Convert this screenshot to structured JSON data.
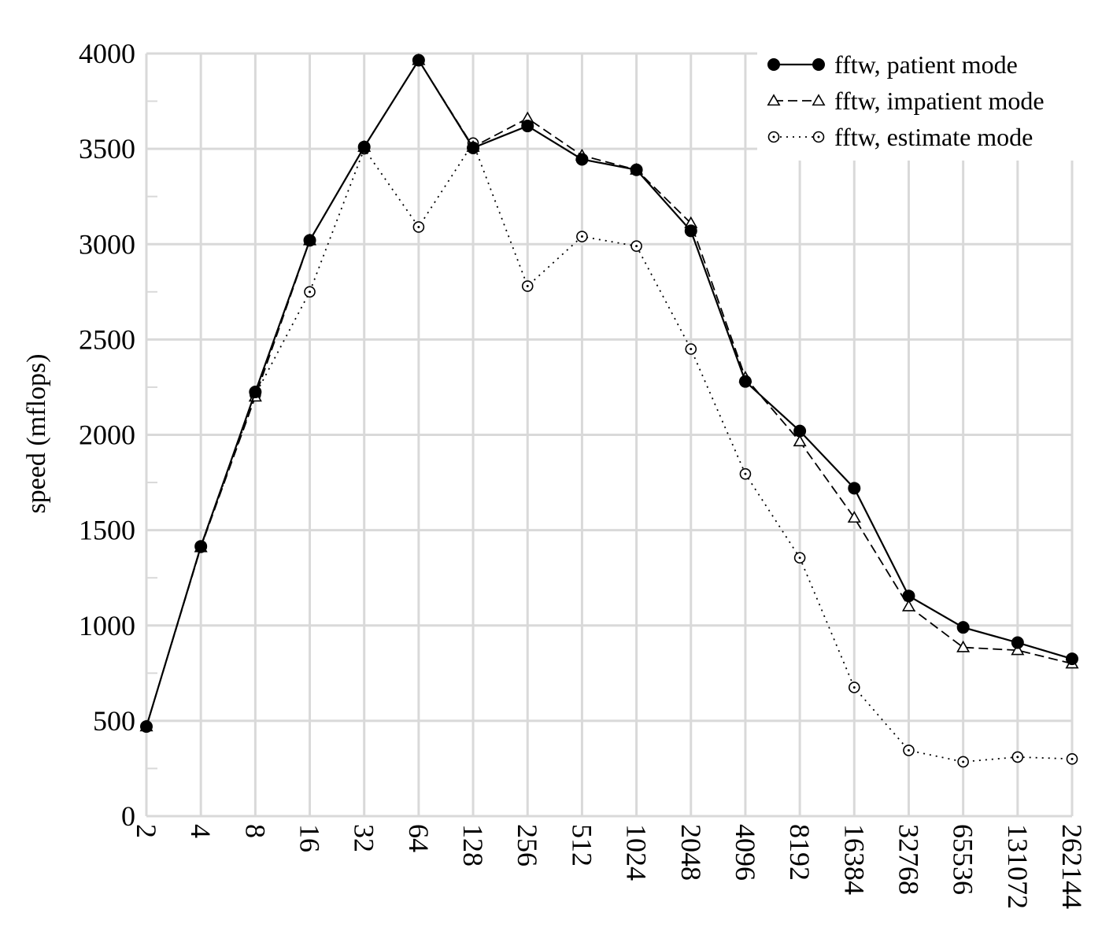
{
  "chart_data": {
    "type": "line",
    "title": "",
    "xlabel": "",
    "ylabel": "speed (mflops)",
    "categories": [
      "2",
      "4",
      "8",
      "16",
      "32",
      "64",
      "128",
      "256",
      "512",
      "1024",
      "2048",
      "4096",
      "8192",
      "16384",
      "32768",
      "65536",
      "131072",
      "262144"
    ],
    "ylim": [
      0,
      4000
    ],
    "yticks": [
      0,
      500,
      1000,
      1500,
      2000,
      2500,
      3000,
      3500,
      4000
    ],
    "grid": true,
    "legend_position": "top-right",
    "series": [
      {
        "name": "fftw, patient mode",
        "line_style": "solid",
        "marker": "filled-circle",
        "values": [
          470,
          1415,
          2225,
          3020,
          3510,
          3965,
          3505,
          3620,
          3445,
          3390,
          3070,
          2280,
          2020,
          1720,
          1155,
          990,
          910,
          825
        ]
      },
      {
        "name": "fftw, impatient mode",
        "line_style": "dashed",
        "marker": "open-triangle",
        "values": [
          470,
          1410,
          2200,
          3020,
          3510,
          3965,
          3510,
          3660,
          3465,
          3390,
          3110,
          2300,
          1965,
          1565,
          1100,
          885,
          870,
          800
        ]
      },
      {
        "name": "fftw, estimate mode",
        "line_style": "dotted",
        "marker": "open-circle",
        "values": [
          470,
          1410,
          2210,
          2750,
          3500,
          3090,
          3530,
          2780,
          3040,
          2990,
          2450,
          1795,
          1355,
          675,
          345,
          285,
          310,
          300
        ]
      }
    ],
    "colors": {
      "line": "#000000",
      "grid": "#d9d9d9"
    }
  }
}
